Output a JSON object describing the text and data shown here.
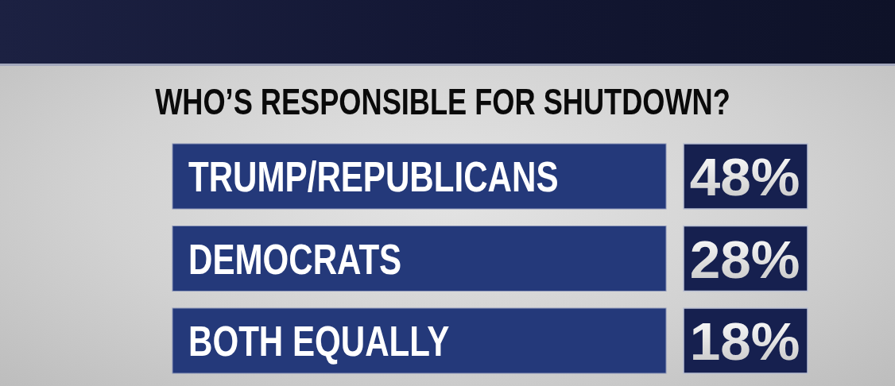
{
  "chart_data": {
    "type": "other",
    "title": "WHO’S RESPONSIBLE FOR SHUTDOWN?",
    "categories": [
      "TRUMP/REPUBLICANS",
      "DEMOCRATS",
      "BOTH EQUALLY"
    ],
    "values": [
      48,
      28,
      18
    ],
    "value_labels": [
      "48%",
      "28%",
      "18%"
    ],
    "colors": [
      "#16204f",
      "#16204f",
      "#16204f"
    ]
  }
}
